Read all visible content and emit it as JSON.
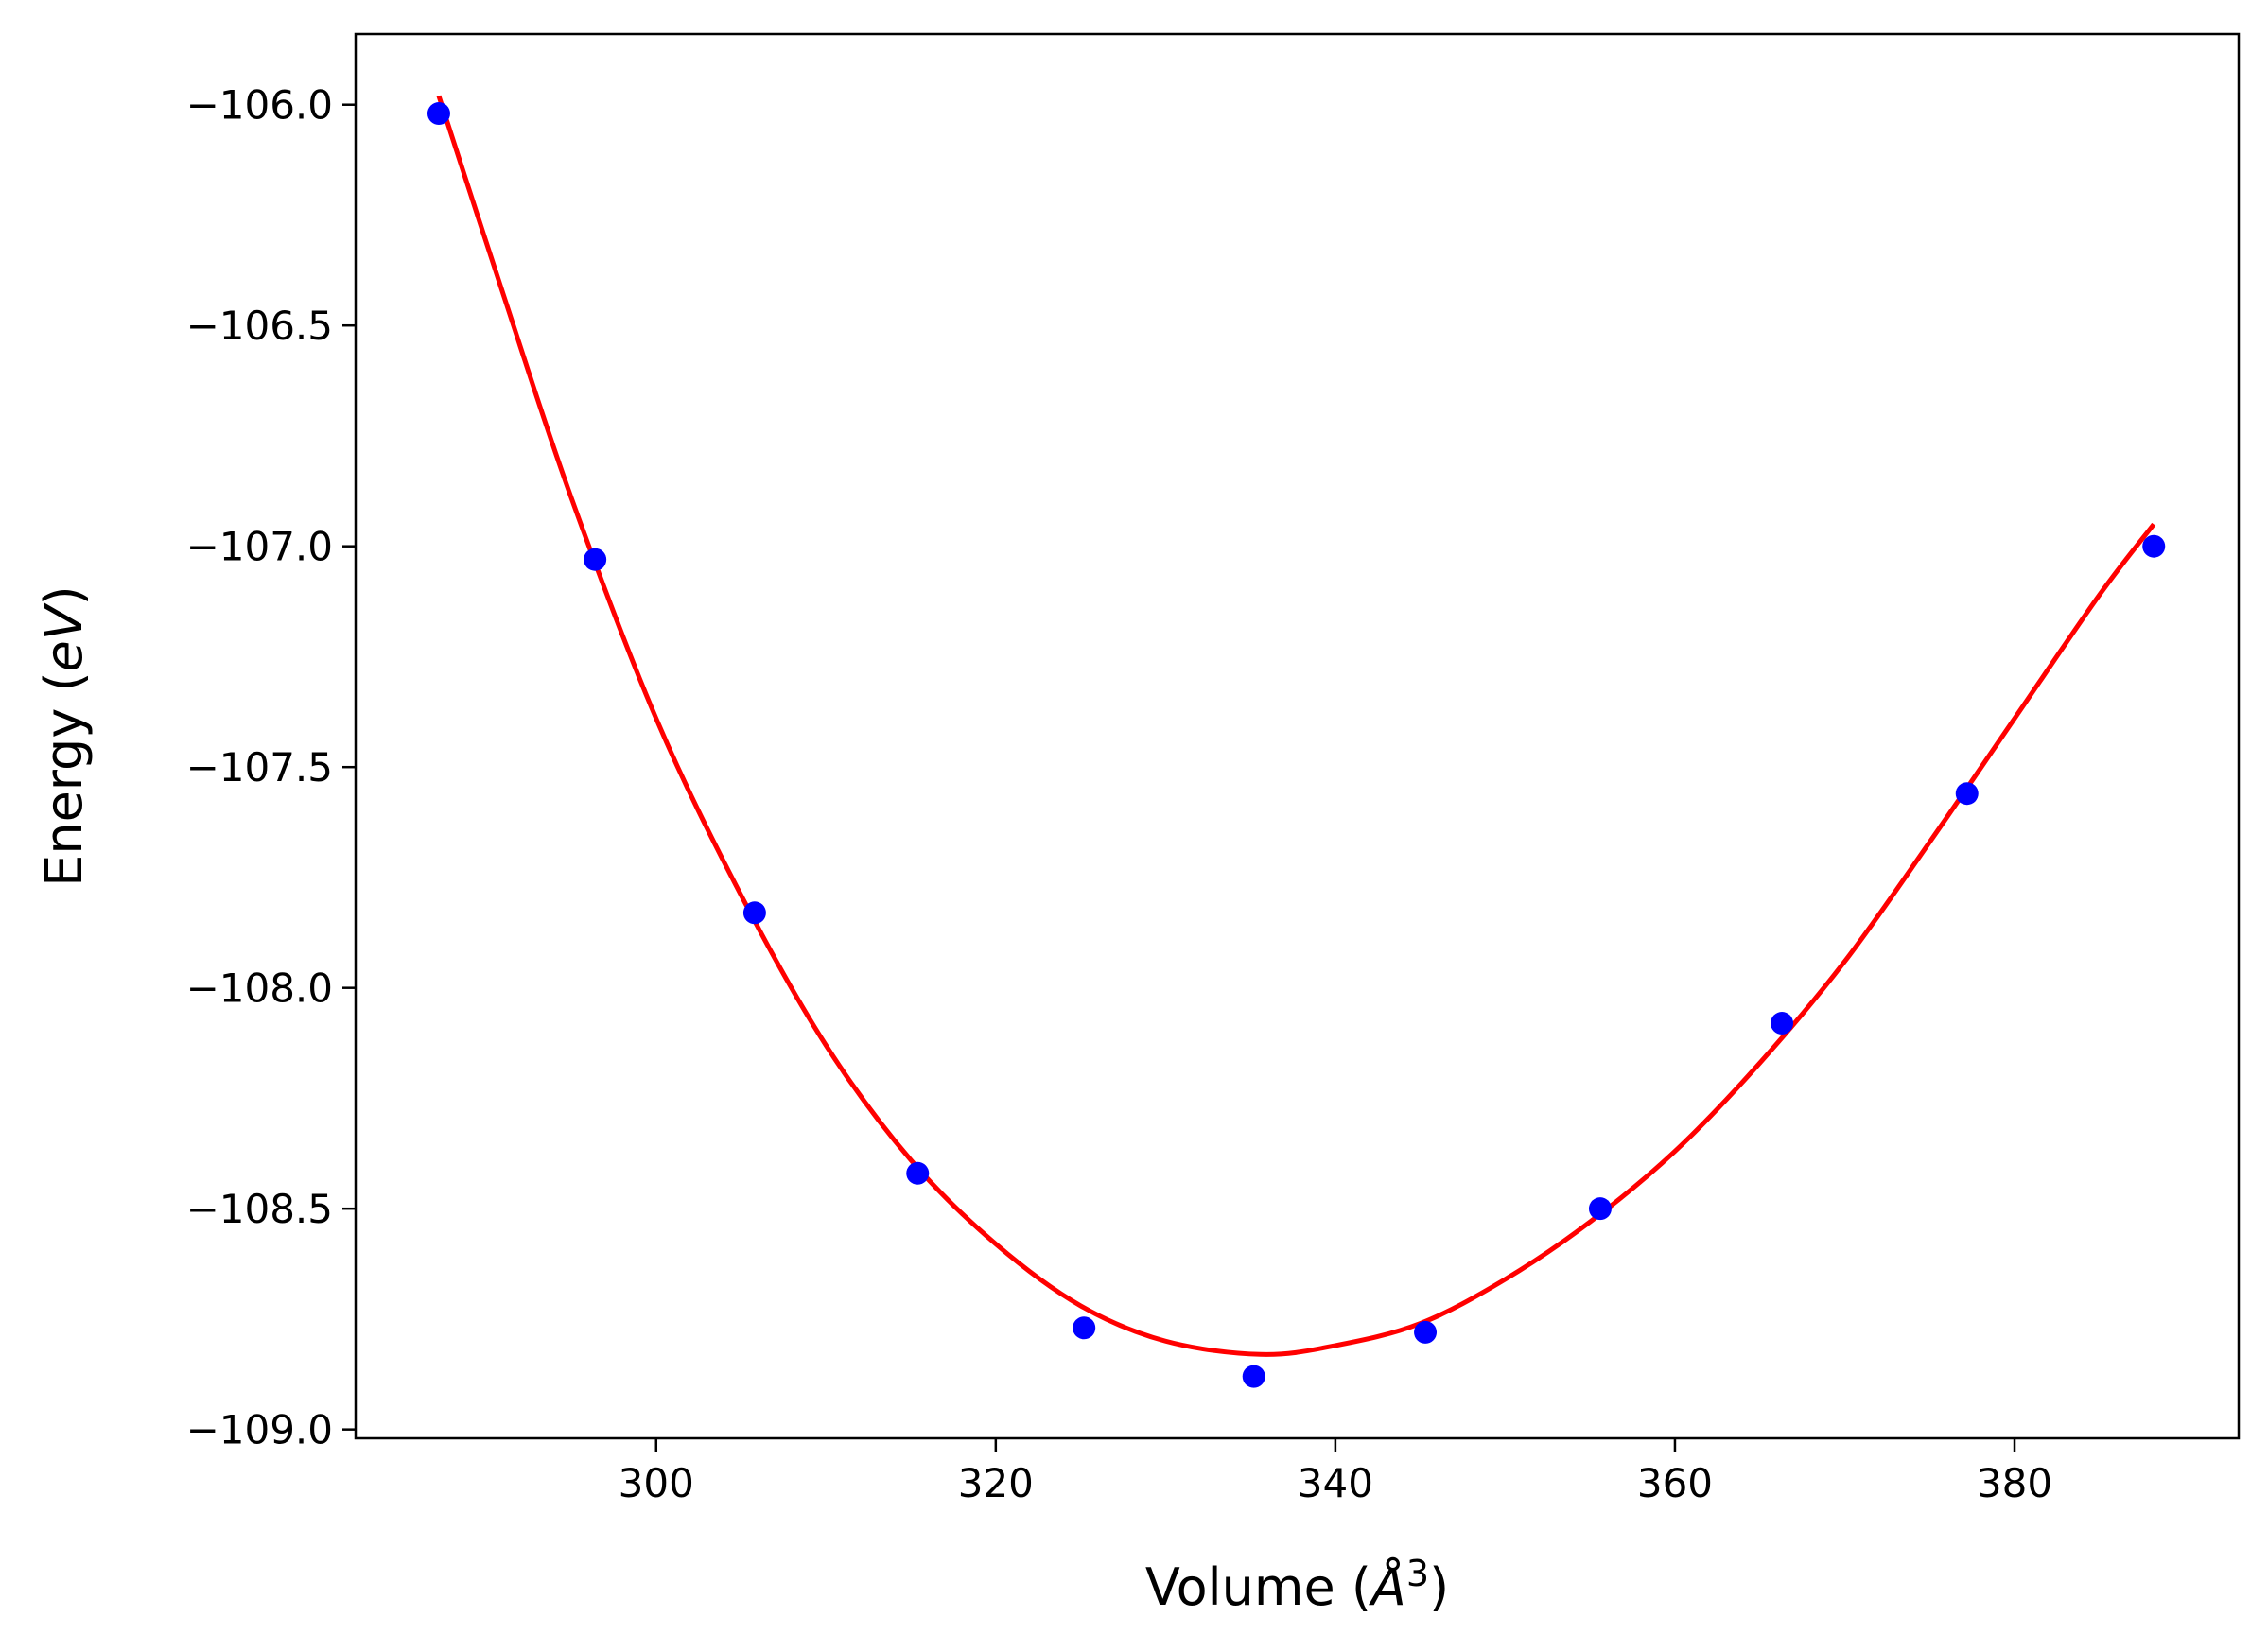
{
  "chart_data": {
    "type": "scatter",
    "title": "",
    "xlabel": "Volume (Å³)",
    "xlabel_parts": {
      "pre": "Volume (",
      "italic": "Å",
      "sup": "3",
      "post": ")"
    },
    "ylabel": "Energy (eV)",
    "ylabel_parts": {
      "pre": "Energy (",
      "italic": "eV",
      "post": ")"
    },
    "xlim": [
      282.3,
      393.2
    ],
    "ylim": [
      -109.02,
      -105.84
    ],
    "xticks": [
      300,
      320,
      340,
      360,
      380
    ],
    "yticks": [
      -106.0,
      -106.5,
      -107.0,
      -107.5,
      -108.0,
      -108.5,
      -109.0
    ],
    "xtick_labels": [
      "300",
      "320",
      "340",
      "360",
      "380"
    ],
    "ytick_labels": [
      "−106.0",
      "−106.5",
      "−107.0",
      "−107.5",
      "−108.0",
      "−108.5",
      "−109.0"
    ],
    "grid": false,
    "series": [
      {
        "kind": "points",
        "color": "#0000ff",
        "x": [
          287.2,
          296.4,
          305.8,
          315.4,
          325.2,
          335.2,
          345.3,
          355.6,
          366.3,
          377.2,
          388.2
        ],
        "y": [
          -106.02,
          -107.03,
          -107.83,
          -108.42,
          -108.77,
          -108.88,
          -108.78,
          -108.5,
          -108.08,
          -107.56,
          -107.0
        ]
      },
      {
        "kind": "fit-curve",
        "color": "#ff0000",
        "x": [
          287.2,
          291.0,
          295.0,
          300.0,
          305.0,
          310.0,
          315.0,
          320.0,
          325.0,
          330.0,
          335.6,
          340.0,
          345.0,
          350.0,
          355.0,
          360.0,
          365.0,
          370.0,
          375.0,
          380.0,
          385.0,
          388.2
        ],
        "y": [
          -105.98,
          -106.43,
          -106.89,
          -107.39,
          -107.79,
          -108.13,
          -108.39,
          -108.58,
          -108.72,
          -108.8,
          -108.83,
          -108.81,
          -108.76,
          -108.66,
          -108.53,
          -108.37,
          -108.17,
          -107.94,
          -107.67,
          -107.39,
          -107.11,
          -106.95
        ]
      }
    ]
  }
}
